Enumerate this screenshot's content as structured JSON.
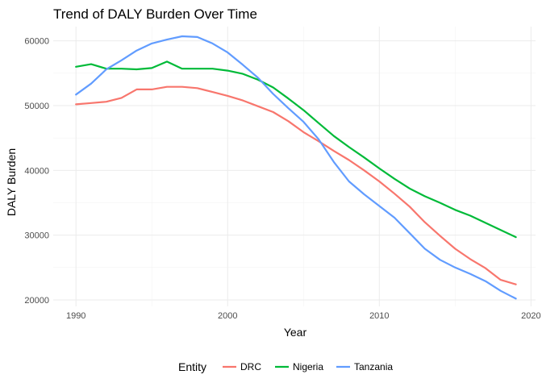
{
  "chart_data": {
    "type": "line",
    "title": "Trend of DALY Burden Over Time",
    "xlabel": "Year",
    "ylabel": "DALY Burden",
    "xlim": [
      1988.5,
      2020.3
    ],
    "ylim": [
      19000,
      62200
    ],
    "x_ticks": [
      1990,
      2000,
      2010,
      2020
    ],
    "x_tick_labels": [
      "1990",
      "2000",
      "2010",
      "2020"
    ],
    "y_ticks": [
      20000,
      30000,
      40000,
      50000,
      60000
    ],
    "y_tick_labels": [
      "20000",
      "30000",
      "40000",
      "50000",
      "60000"
    ],
    "grid": true,
    "legend": {
      "title": "Entity",
      "position": "bottom"
    },
    "x": [
      1990,
      1991,
      1992,
      1993,
      1994,
      1995,
      1996,
      1997,
      1998,
      1999,
      2000,
      2001,
      2002,
      2003,
      2004,
      2005,
      2006,
      2007,
      2008,
      2009,
      2010,
      2011,
      2012,
      2013,
      2014,
      2015,
      2016,
      2017,
      2018,
      2019
    ],
    "series": [
      {
        "name": "DRC",
        "color": "#F8766D",
        "values": [
          50200,
          50400,
          50600,
          51200,
          52500,
          52500,
          52900,
          52900,
          52700,
          52100,
          51500,
          50800,
          49900,
          49000,
          47600,
          45900,
          44500,
          43000,
          41600,
          40000,
          38300,
          36400,
          34400,
          32000,
          29900,
          27900,
          26300,
          24900,
          23100,
          22400
        ]
      },
      {
        "name": "Nigeria",
        "color": "#00BA38",
        "values": [
          56000,
          56400,
          55700,
          55700,
          55600,
          55800,
          56800,
          55700,
          55700,
          55700,
          55400,
          54900,
          54000,
          52800,
          51100,
          49300,
          47300,
          45300,
          43600,
          42000,
          40300,
          38700,
          37200,
          36000,
          35000,
          33900,
          33000,
          31900,
          30800,
          29700
        ]
      },
      {
        "name": "Tanzania",
        "color": "#619CFF",
        "values": [
          51700,
          53400,
          55600,
          57000,
          58500,
          59600,
          60200,
          60700,
          60600,
          59600,
          58200,
          56300,
          54300,
          51800,
          49600,
          47500,
          44800,
          41300,
          38300,
          36300,
          34500,
          32700,
          30300,
          27900,
          26200,
          25000,
          24000,
          22900,
          21400,
          20200
        ]
      }
    ]
  }
}
